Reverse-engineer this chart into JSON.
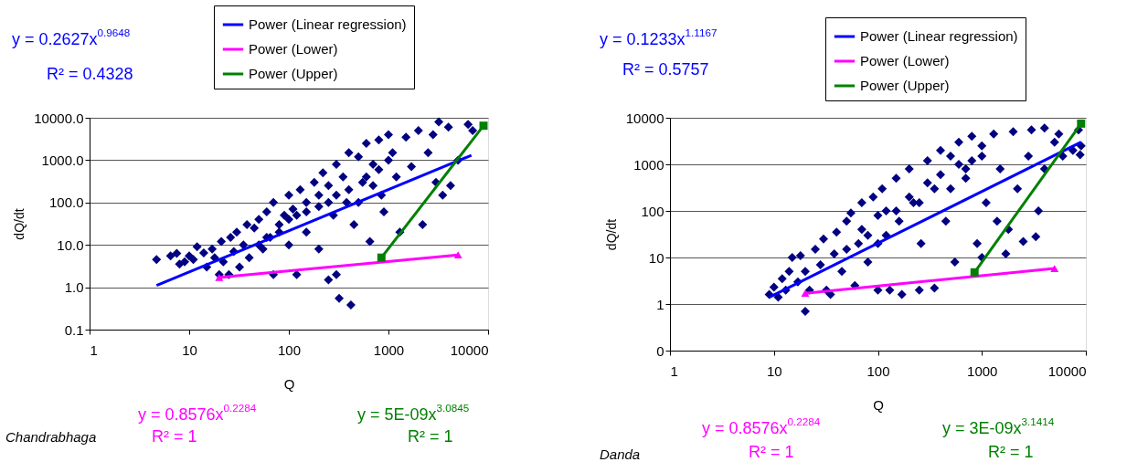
{
  "chart_data": [
    {
      "type": "scatter",
      "xlabel": "Q",
      "ylabel": "dQ/dt",
      "log": "xy",
      "grid": "y",
      "legend": "top right",
      "xlim": [
        1,
        10000
      ],
      "xticks": [
        1,
        10,
        100,
        1000,
        10000
      ],
      "ylim": [
        0.1,
        10000
      ],
      "yticks": [
        {
          "value": 0.1,
          "label": "0.1"
        },
        {
          "value": 1,
          "label": "1.0"
        },
        {
          "value": 10,
          "label": "10.0"
        },
        {
          "value": 100,
          "label": "100.0"
        },
        {
          "value": 1000,
          "label": "1000.0"
        },
        {
          "value": 10000,
          "label": "10000.0"
        }
      ],
      "annotations": [
        "y = 0.2627x$^{0.9648}$",
        "R² = 0.4328",
        "y = 0.8576x$^{0.2284}$",
        "R² = 1",
        "y = 5E-09x$^{3.0845}$",
        "R² = 1",
        "Chandrabhaga"
      ],
      "series": [
        {
          "type": "scatter",
          "color": "#000080",
          "marker": "diamond",
          "x": [
            4.7,
            6.5,
            7.5,
            8,
            10,
            9,
            12,
            11,
            14,
            15,
            17,
            18,
            20,
            21,
            22,
            25,
            26,
            28,
            30,
            32,
            35,
            38,
            40,
            45,
            50,
            55,
            60,
            65,
            70,
            70,
            80,
            90,
            100,
            100,
            110,
            120,
            130,
            150,
            150,
            180,
            200,
            200,
            220,
            250,
            250,
            280,
            300,
            300,
            320,
            350,
            380,
            420,
            400,
            450,
            500,
            550,
            600,
            650,
            700,
            800,
            850,
            900,
            1000,
            1100,
            1200,
            1300,
            1500,
            1700,
            2000,
            2200,
            2500,
            2800,
            3000,
            3200,
            3500,
            4000,
            4200,
            5000,
            6300,
            7000,
            50,
            80,
            100,
            150,
            200,
            300,
            400,
            500,
            600,
            800,
            1000,
            60,
            120,
            250,
            700
          ],
          "values": [
            4.5,
            5.5,
            6.3,
            3.5,
            5.5,
            4,
            9,
            4.5,
            6.5,
            3,
            8,
            5,
            2,
            12,
            4,
            2,
            15,
            7,
            20,
            3,
            10,
            30,
            5,
            25,
            40,
            8,
            60,
            15,
            2,
            100,
            30,
            50,
            150,
            10,
            70,
            2,
            200,
            100,
            20,
            300,
            150,
            8,
            500,
            250,
            1.5,
            50,
            800,
            2,
            0.55,
            400,
            100,
            0.38,
            1500,
            30,
            1200,
            300,
            2500,
            12,
            800,
            3000,
            150,
            60,
            4000,
            1500,
            400,
            20,
            3500,
            700,
            5000,
            30,
            1500,
            4000,
            300,
            8000,
            150,
            6000,
            250,
            1000,
            7000,
            5000,
            10,
            20,
            40,
            60,
            80,
            150,
            200,
            100,
            400,
            600,
            1000,
            15,
            50,
            100,
            250
          ]
        },
        {
          "type": "line",
          "name": "Power (Linear regression)",
          "color": "#0000ff",
          "marker": "none",
          "x": [
            4.7,
            6800
          ],
          "values": [
            1.1,
            1300
          ]
        },
        {
          "type": "line",
          "name": "Power (Lower)",
          "color": "#ff00ff",
          "marker": "triangle",
          "x": [
            20,
            5000
          ],
          "values": [
            1.7,
            5.8
          ]
        },
        {
          "type": "line",
          "name": "Power (Upper)",
          "color": "#008000",
          "marker": "square",
          "x": [
            850,
            9000
          ],
          "values": [
            5,
            6500
          ]
        }
      ]
    },
    {
      "type": "scatter",
      "xlabel": "Q",
      "ylabel": "dQ/dt",
      "log": "xy",
      "grid": "y",
      "legend": "top right",
      "xlim": [
        1,
        10000
      ],
      "xticks": [
        1,
        10,
        100,
        1000,
        10000
      ],
      "ylim": [
        0.1,
        10000
      ],
      "yticks": [
        {
          "value": 0.1,
          "label": "0"
        },
        1,
        10,
        100,
        1000,
        10000
      ],
      "annotations": [
        "y = 0.1233x$^{1.1167}$",
        "R² = 0.5757",
        "y = 0.8576x$^{0.2284}$",
        "R² = 1",
        "y = 3E-09x$^{3.1414}$",
        "R² = 1",
        "Danda"
      ],
      "series": [
        {
          "type": "scatter",
          "color": "#000080",
          "marker": "diamond",
          "x": [
            9,
            11,
            10,
            12,
            13,
            14,
            15,
            17,
            18,
            20,
            20,
            22,
            25,
            28,
            30,
            32,
            35,
            38,
            40,
            45,
            50,
            55,
            60,
            65,
            70,
            80,
            90,
            100,
            100,
            110,
            120,
            130,
            150,
            160,
            170,
            200,
            220,
            250,
            260,
            300,
            350,
            350,
            400,
            450,
            500,
            550,
            600,
            700,
            800,
            900,
            1000,
            1000,
            1100,
            1300,
            1400,
            1500,
            1700,
            1800,
            2000,
            2200,
            2500,
            2800,
            3000,
            3300,
            3500,
            4000,
            4000,
            5000,
            5500,
            6000,
            7500,
            8500,
            9000,
            8800,
            50,
            80,
            100,
            150,
            200,
            300,
            400,
            500,
            600,
            800,
            1000,
            70,
            120,
            250,
            700
          ],
          "values": [
            1.6,
            1.4,
            2.3,
            3.5,
            2,
            5,
            10,
            3,
            11,
            0.7,
            5,
            2,
            15,
            7,
            25,
            2,
            1.6,
            12,
            35,
            5,
            60,
            90,
            2.5,
            20,
            150,
            8,
            200,
            2,
            80,
            300,
            30,
            2,
            500,
            60,
            1.6,
            800,
            150,
            2,
            20,
            1200,
            2.2,
            300,
            2000,
            60,
            1500,
            8,
            3000,
            500,
            4000,
            20,
            2500,
            10,
            150,
            4500,
            60,
            800,
            12,
            40,
            5000,
            300,
            22,
            1500,
            5500,
            28,
            100,
            6000,
            800,
            3000,
            4500,
            1500,
            2000,
            5500,
            2500,
            1600,
            15,
            30,
            20,
            100,
            200,
            400,
            600,
            300,
            1000,
            1200,
            1500,
            40,
            100,
            150,
            800
          ]
        },
        {
          "type": "line",
          "name": "Power (Linear regression)",
          "color": "#0000ff",
          "marker": "none",
          "x": [
            9,
            9000
          ],
          "values": [
            1.4,
            3000
          ]
        },
        {
          "type": "line",
          "name": "Power (Lower)",
          "color": "#ff00ff",
          "marker": "triangle",
          "x": [
            20,
            5000
          ],
          "values": [
            1.7,
            5.8
          ]
        },
        {
          "type": "line",
          "name": "Power (Upper)",
          "color": "#008000",
          "marker": "square",
          "x": [
            850,
            9000
          ],
          "values": [
            4.8,
            7500
          ]
        }
      ]
    }
  ]
}
